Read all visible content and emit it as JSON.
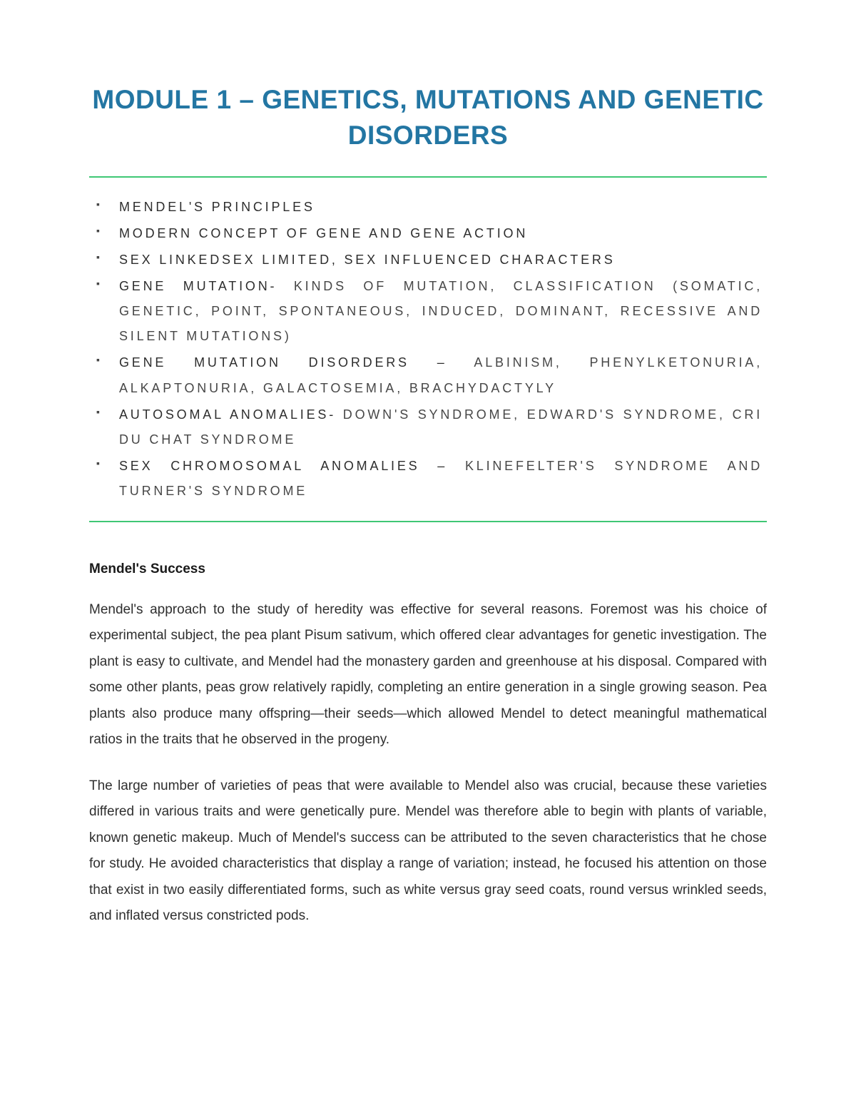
{
  "title": "MODULE 1 – GENETICS, MUTATIONS AND GENETIC DISORDERS",
  "colors": {
    "title_color": "#2376a3",
    "divider_color": "#3fc774",
    "topic_text_color": "#474747",
    "topic_dark_color": "#2d2d2d",
    "body_text_color": "#2f2f2f",
    "heading_color": "#1a1a1a",
    "background": "#ffffff"
  },
  "typography": {
    "title_fontsize": 37,
    "topic_fontsize": 18,
    "topic_letter_spacing": 3.8,
    "body_fontsize": 19,
    "heading_fontsize": 19
  },
  "topics": {
    "items": [
      {
        "prefix": "MENDEL'S PRINCIPLES",
        "rest": ""
      },
      {
        "prefix": "MODERN CONCEPT OF GENE AND GENE ACTION",
        "rest": ""
      },
      {
        "prefix": "SEX LINKEDSEX LIMITED, SEX INFLUENCED CHARACTERS",
        "rest": ""
      },
      {
        "prefix": "GENE MUTATION-",
        "rest": " KINDS OF MUTATION, CLASSIFICATION (SOMATIC, GENETIC, POINT, SPONTANEOUS, INDUCED, DOMINANT, RECESSIVE AND SILENT MUTATIONS)"
      },
      {
        "prefix": "GENE MUTATION DISORDERS –",
        "rest": " ALBINISM, PHENYLKETONURIA, ALKAPTONURIA, GALACTOSEMIA, BRACHYDACTYLY"
      },
      {
        "prefix": "AUTOSOMAL ANOMALIES-",
        "rest": " DOWN'S SYNDROME, EDWARD'S SYNDROME, CRI DU CHAT SYNDROME"
      },
      {
        "prefix": "SEX CHROMOSOMAL ANOMALIES –",
        "rest": " KLINEFELTER'S SYNDROME AND TURNER'S SYNDROME"
      }
    ]
  },
  "section": {
    "heading": "Mendel's Success",
    "paragraphs": [
      "Mendel's approach to the study of heredity was effective for several reasons. Foremost was his choice of experimental subject, the pea plant Pisum sativum, which offered clear advantages for genetic investigation. The plant is easy to cultivate, and Mendel had the monastery garden and greenhouse at his disposal. Compared with some other plants, peas grow relatively rapidly, completing an entire generation in a single growing season. Pea plants also produce many offspring—their seeds—which allowed Mendel to detect meaningful mathematical ratios in the traits that he observed in the progeny.",
      "The large number of varieties of peas that were available to Mendel also was crucial, because these varieties differed in various traits and were genetically pure. Mendel was therefore able to begin with plants of variable, known genetic makeup. Much of Mendel's success can be attributed to the seven characteristics that he chose for study. He avoided characteristics that display a range of variation; instead, he focused his attention on those that exist in two easily differentiated forms, such as white versus gray seed coats, round versus wrinkled seeds, and inflated versus constricted pods."
    ]
  }
}
